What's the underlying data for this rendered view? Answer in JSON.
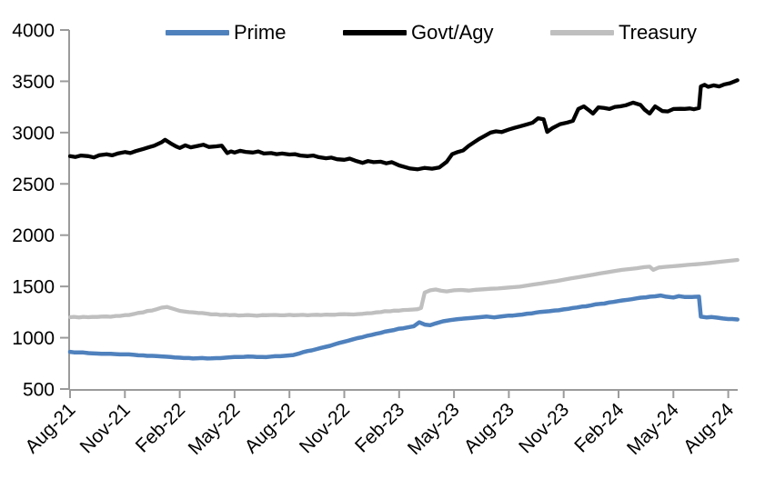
{
  "chart_data": {
    "type": "line",
    "title": "",
    "legend_position": "top",
    "grid": false,
    "axis_color": "#9b9b9b",
    "ylim": [
      500,
      4000
    ],
    "y_ticks": [
      500,
      1000,
      1500,
      2000,
      2500,
      3000,
      3500,
      4000
    ],
    "x_ticks": [
      "Aug-21",
      "Nov-21",
      "Feb-22",
      "May-22",
      "Aug-22",
      "Nov-22",
      "Feb-23",
      "May-23",
      "Aug-23",
      "Nov-23",
      "Feb-24",
      "May-24",
      "Aug-24"
    ],
    "x_unit": "months since Aug-2021 (tick spacing = 3 months)",
    "series": [
      {
        "name": "Prime",
        "color": "#4f81bd",
        "jitter": 4,
        "points": [
          [
            0,
            862
          ],
          [
            0.5,
            856
          ],
          [
            1,
            850
          ],
          [
            1.5,
            846
          ],
          [
            2,
            843
          ],
          [
            2.5,
            840
          ],
          [
            3,
            838
          ],
          [
            3.5,
            833
          ],
          [
            4,
            828
          ],
          [
            4.5,
            823
          ],
          [
            5,
            818
          ],
          [
            5.5,
            812
          ],
          [
            6,
            806
          ],
          [
            6.5,
            802
          ],
          [
            7,
            800
          ],
          [
            7.5,
            798
          ],
          [
            8,
            801
          ],
          [
            8.5,
            806
          ],
          [
            9,
            812
          ],
          [
            9.5,
            814
          ],
          [
            10,
            815
          ],
          [
            10.5,
            812
          ],
          [
            11,
            816
          ],
          [
            11.5,
            820
          ],
          [
            12,
            828
          ],
          [
            12.5,
            845
          ],
          [
            13,
            870
          ],
          [
            13.5,
            890
          ],
          [
            14,
            912
          ],
          [
            14.5,
            938
          ],
          [
            15,
            962
          ],
          [
            15.5,
            986
          ],
          [
            16,
            1006
          ],
          [
            16.5,
            1028
          ],
          [
            17,
            1048
          ],
          [
            17.5,
            1068
          ],
          [
            18,
            1088
          ],
          [
            18.5,
            1102
          ],
          [
            18.8,
            1112
          ],
          [
            19.1,
            1150
          ],
          [
            19.4,
            1128
          ],
          [
            19.7,
            1122
          ],
          [
            20,
            1140
          ],
          [
            20.4,
            1160
          ],
          [
            20.8,
            1172
          ],
          [
            21.2,
            1181
          ],
          [
            21.6,
            1188
          ],
          [
            22,
            1194
          ],
          [
            22.4,
            1200
          ],
          [
            22.8,
            1206
          ],
          [
            23.2,
            1198
          ],
          [
            23.6,
            1208
          ],
          [
            24,
            1216
          ],
          [
            24.5,
            1222
          ],
          [
            25,
            1235
          ],
          [
            25.5,
            1246
          ],
          [
            26,
            1256
          ],
          [
            26.5,
            1266
          ],
          [
            27,
            1276
          ],
          [
            27.5,
            1290
          ],
          [
            28,
            1304
          ],
          [
            28.5,
            1316
          ],
          [
            29,
            1330
          ],
          [
            29.5,
            1344
          ],
          [
            30,
            1358
          ],
          [
            30.5,
            1370
          ],
          [
            31,
            1384
          ],
          [
            31.5,
            1394
          ],
          [
            32,
            1404
          ],
          [
            32.3,
            1412
          ],
          [
            32.6,
            1400
          ],
          [
            33,
            1392
          ],
          [
            33.3,
            1406
          ],
          [
            33.6,
            1398
          ],
          [
            34,
            1398
          ],
          [
            34.4,
            1400
          ],
          [
            34.5,
            1205
          ],
          [
            34.8,
            1198
          ],
          [
            35.1,
            1202
          ],
          [
            35.4,
            1196
          ],
          [
            35.7,
            1188
          ],
          [
            36,
            1182
          ],
          [
            36.5,
            1178
          ]
        ]
      },
      {
        "name": "Govt/Agy",
        "color": "#000000",
        "jitter": 11,
        "points": [
          [
            0,
            2770
          ],
          [
            0.3,
            2762
          ],
          [
            0.6,
            2776
          ],
          [
            1,
            2770
          ],
          [
            1.3,
            2758
          ],
          [
            1.6,
            2780
          ],
          [
            2,
            2788
          ],
          [
            2.3,
            2778
          ],
          [
            2.6,
            2796
          ],
          [
            3,
            2810
          ],
          [
            3.3,
            2800
          ],
          [
            3.6,
            2820
          ],
          [
            4,
            2840
          ],
          [
            4.3,
            2856
          ],
          [
            4.6,
            2872
          ],
          [
            5,
            2905
          ],
          [
            5.2,
            2930
          ],
          [
            5.5,
            2895
          ],
          [
            5.8,
            2865
          ],
          [
            6,
            2850
          ],
          [
            6.3,
            2876
          ],
          [
            6.6,
            2856
          ],
          [
            7,
            2870
          ],
          [
            7.3,
            2882
          ],
          [
            7.6,
            2860
          ],
          [
            8,
            2866
          ],
          [
            8.3,
            2872
          ],
          [
            8.6,
            2800
          ],
          [
            8.8,
            2816
          ],
          [
            9,
            2806
          ],
          [
            9.3,
            2822
          ],
          [
            9.6,
            2812
          ],
          [
            10,
            2806
          ],
          [
            10.3,
            2816
          ],
          [
            10.6,
            2796
          ],
          [
            11,
            2800
          ],
          [
            11.3,
            2790
          ],
          [
            11.6,
            2796
          ],
          [
            12,
            2786
          ],
          [
            12.3,
            2790
          ],
          [
            12.6,
            2776
          ],
          [
            13,
            2770
          ],
          [
            13.3,
            2776
          ],
          [
            13.6,
            2760
          ],
          [
            14,
            2750
          ],
          [
            14.3,
            2756
          ],
          [
            14.6,
            2740
          ],
          [
            15,
            2735
          ],
          [
            15.3,
            2746
          ],
          [
            15.6,
            2726
          ],
          [
            16,
            2705
          ],
          [
            16.3,
            2722
          ],
          [
            16.6,
            2712
          ],
          [
            17,
            2716
          ],
          [
            17.3,
            2700
          ],
          [
            17.6,
            2712
          ],
          [
            18,
            2680
          ],
          [
            18.3,
            2665
          ],
          [
            18.6,
            2650
          ],
          [
            19,
            2642
          ],
          [
            19.4,
            2656
          ],
          [
            19.8,
            2648
          ],
          [
            20.2,
            2660
          ],
          [
            20.6,
            2715
          ],
          [
            20.9,
            2790
          ],
          [
            21.2,
            2810
          ],
          [
            21.5,
            2826
          ],
          [
            21.8,
            2870
          ],
          [
            22.1,
            2906
          ],
          [
            22.4,
            2940
          ],
          [
            22.7,
            2970
          ],
          [
            23,
            3000
          ],
          [
            23.3,
            3012
          ],
          [
            23.6,
            3005
          ],
          [
            24,
            3030
          ],
          [
            24.3,
            3046
          ],
          [
            24.6,
            3060
          ],
          [
            25,
            3080
          ],
          [
            25.3,
            3096
          ],
          [
            25.6,
            3140
          ],
          [
            25.9,
            3130
          ],
          [
            26.1,
            3007
          ],
          [
            26.4,
            3045
          ],
          [
            26.8,
            3082
          ],
          [
            27.2,
            3098
          ],
          [
            27.5,
            3114
          ],
          [
            27.8,
            3230
          ],
          [
            28.1,
            3256
          ],
          [
            28.4,
            3215
          ],
          [
            28.6,
            3186
          ],
          [
            28.9,
            3246
          ],
          [
            29.2,
            3240
          ],
          [
            29.5,
            3230
          ],
          [
            29.8,
            3250
          ],
          [
            30.1,
            3256
          ],
          [
            30.4,
            3266
          ],
          [
            30.8,
            3292
          ],
          [
            31.2,
            3270
          ],
          [
            31.7,
            3186
          ],
          [
            32,
            3256
          ],
          [
            32.4,
            3210
          ],
          [
            32.7,
            3206
          ],
          [
            33,
            3230
          ],
          [
            33.4,
            3232
          ],
          [
            33.9,
            3235
          ],
          [
            34.4,
            3240
          ],
          [
            34.5,
            3450
          ],
          [
            34.7,
            3466
          ],
          [
            34.9,
            3446
          ],
          [
            35.2,
            3460
          ],
          [
            35.5,
            3450
          ],
          [
            35.8,
            3470
          ],
          [
            36.1,
            3482
          ],
          [
            36.5,
            3510
          ]
        ]
      },
      {
        "name": "Treasury",
        "color": "#bfbfbf",
        "jitter": 5,
        "points": [
          [
            0,
            1200
          ],
          [
            0.5,
            1197
          ],
          [
            1,
            1200
          ],
          [
            1.5,
            1203
          ],
          [
            2,
            1207
          ],
          [
            2.5,
            1212
          ],
          [
            3,
            1220
          ],
          [
            3.5,
            1232
          ],
          [
            4,
            1247
          ],
          [
            4.5,
            1266
          ],
          [
            5,
            1293
          ],
          [
            5.3,
            1300
          ],
          [
            5.6,
            1284
          ],
          [
            6,
            1262
          ],
          [
            6.5,
            1250
          ],
          [
            7,
            1242
          ],
          [
            7.5,
            1235
          ],
          [
            8,
            1228
          ],
          [
            8.5,
            1224
          ],
          [
            9,
            1222
          ],
          [
            9.5,
            1219
          ],
          [
            10,
            1218
          ],
          [
            10.5,
            1220
          ],
          [
            11,
            1221
          ],
          [
            11.5,
            1219
          ],
          [
            12,
            1223
          ],
          [
            12.5,
            1221
          ],
          [
            13,
            1219
          ],
          [
            13.5,
            1224
          ],
          [
            14,
            1226
          ],
          [
            14.5,
            1224
          ],
          [
            15,
            1229
          ],
          [
            15.5,
            1227
          ],
          [
            16,
            1233
          ],
          [
            16.5,
            1240
          ],
          [
            17,
            1250
          ],
          [
            17.5,
            1258
          ],
          [
            18,
            1264
          ],
          [
            18.5,
            1272
          ],
          [
            19,
            1278
          ],
          [
            19.2,
            1290
          ],
          [
            19.4,
            1440
          ],
          [
            19.7,
            1462
          ],
          [
            20,
            1470
          ],
          [
            20.3,
            1458
          ],
          [
            20.6,
            1452
          ],
          [
            21,
            1462
          ],
          [
            21.4,
            1466
          ],
          [
            21.8,
            1460
          ],
          [
            22.2,
            1468
          ],
          [
            22.6,
            1472
          ],
          [
            23,
            1477
          ],
          [
            23.4,
            1480
          ],
          [
            23.8,
            1486
          ],
          [
            24.2,
            1492
          ],
          [
            24.6,
            1498
          ],
          [
            25,
            1509
          ],
          [
            25.4,
            1520
          ],
          [
            25.8,
            1530
          ],
          [
            26.2,
            1542
          ],
          [
            26.6,
            1553
          ],
          [
            27,
            1566
          ],
          [
            27.4,
            1578
          ],
          [
            27.8,
            1590
          ],
          [
            28.2,
            1602
          ],
          [
            28.6,
            1614
          ],
          [
            29,
            1627
          ],
          [
            29.4,
            1639
          ],
          [
            29.8,
            1651
          ],
          [
            30.2,
            1662
          ],
          [
            30.6,
            1670
          ],
          [
            31,
            1678
          ],
          [
            31.4,
            1688
          ],
          [
            31.7,
            1693
          ],
          [
            31.9,
            1662
          ],
          [
            32.2,
            1685
          ],
          [
            32.6,
            1692
          ],
          [
            33,
            1697
          ],
          [
            33.4,
            1703
          ],
          [
            33.8,
            1710
          ],
          [
            34.2,
            1716
          ],
          [
            34.6,
            1722
          ],
          [
            35,
            1729
          ],
          [
            35.4,
            1737
          ],
          [
            35.8,
            1745
          ],
          [
            36.1,
            1750
          ],
          [
            36.5,
            1758
          ]
        ]
      }
    ]
  }
}
